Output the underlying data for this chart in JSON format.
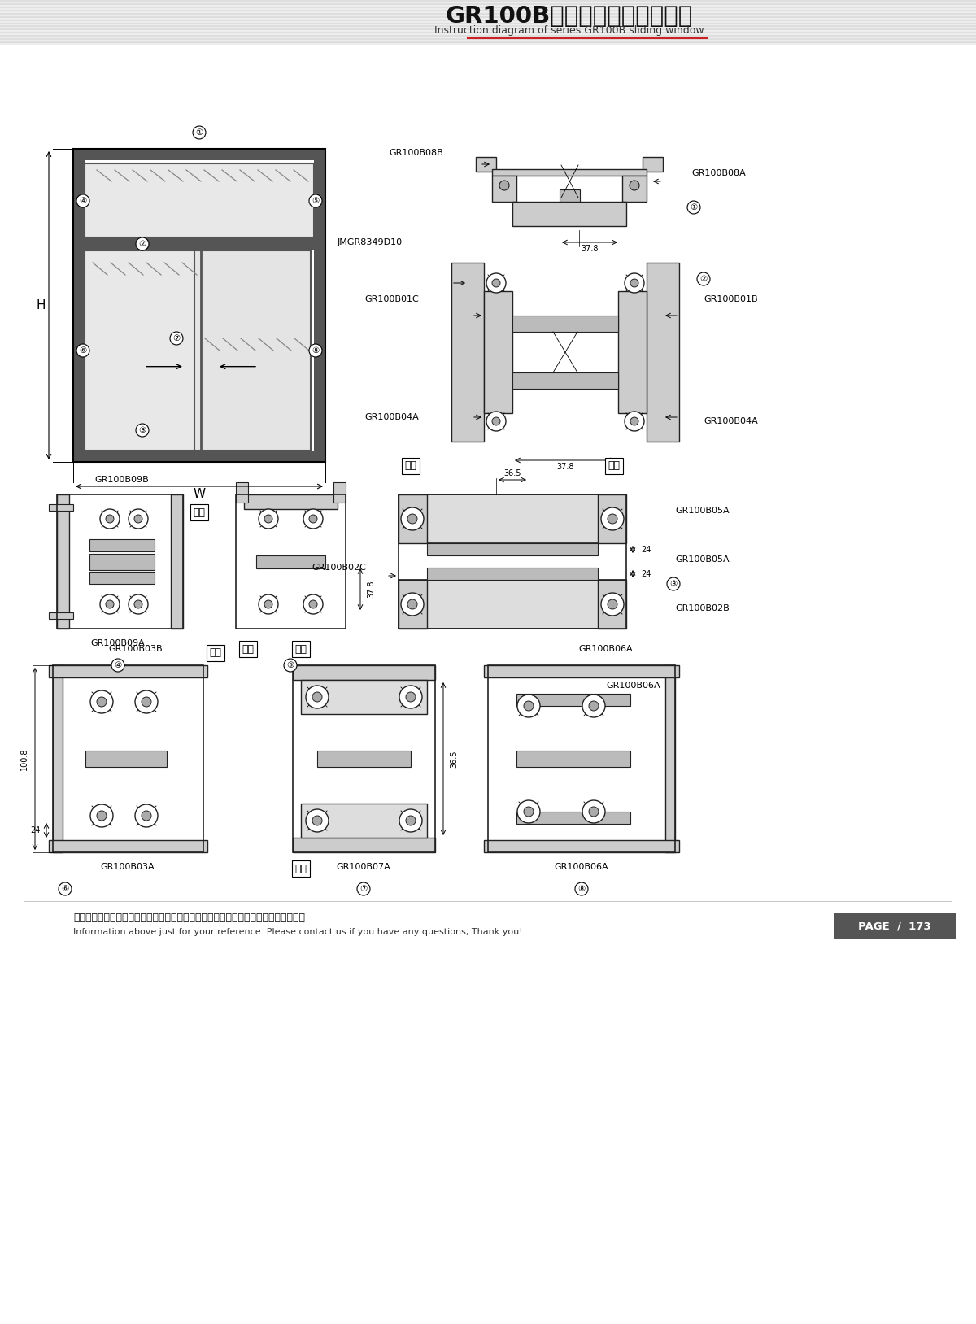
{
  "title_cn": "GR100B系列隔热推拉窗结构图",
  "title_en": "Instruction diagram of series GR100B sliding window",
  "footer_cn": "图中所示型材截面、装配、编号、尺寸及重量仅供参考。如有疑问，请向本公司查询。",
  "footer_en": "Information above just for your reference. Please contact us if you have any questions, Thank you!",
  "page": "PAGE  /  173",
  "bg_stripe_light": 0.93,
  "bg_stripe_dark": 0.87,
  "frame_gray": "#555555",
  "section_line": "#222222",
  "red_accent": "#cc2222",
  "page_box_gray": "#555555"
}
